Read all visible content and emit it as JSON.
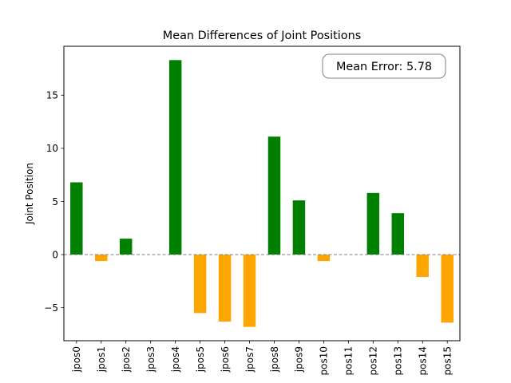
{
  "chart_data": {
    "type": "bar",
    "title": "Mean Differences of Joint Positions",
    "xlabel": "",
    "ylabel": "Joint Position",
    "categories": [
      "jpos0",
      "jpos1",
      "jpos2",
      "jpos3",
      "jpos4",
      "jpos5",
      "jpos6",
      "jpos7",
      "jpos8",
      "jpos9",
      "pos10",
      "pos11",
      "pos12",
      "pos13",
      "pos14",
      "pos15"
    ],
    "values": [
      6.8,
      -0.6,
      1.5,
      0.0,
      18.3,
      -5.5,
      -6.3,
      -6.8,
      11.1,
      5.1,
      -0.6,
      0.0,
      5.8,
      3.9,
      -2.1,
      -6.4
    ],
    "ylim": [
      -8.1,
      19.6
    ],
    "yticks": [
      -5,
      0,
      5,
      10,
      15
    ],
    "ytick_labels": [
      "−5",
      "0",
      "5",
      "10",
      "15"
    ],
    "positive_color": "#008000",
    "negative_color": "#ffa500",
    "zero_line_color": "#808080",
    "annotation": "Mean Error: 5.78",
    "grid": false
  }
}
